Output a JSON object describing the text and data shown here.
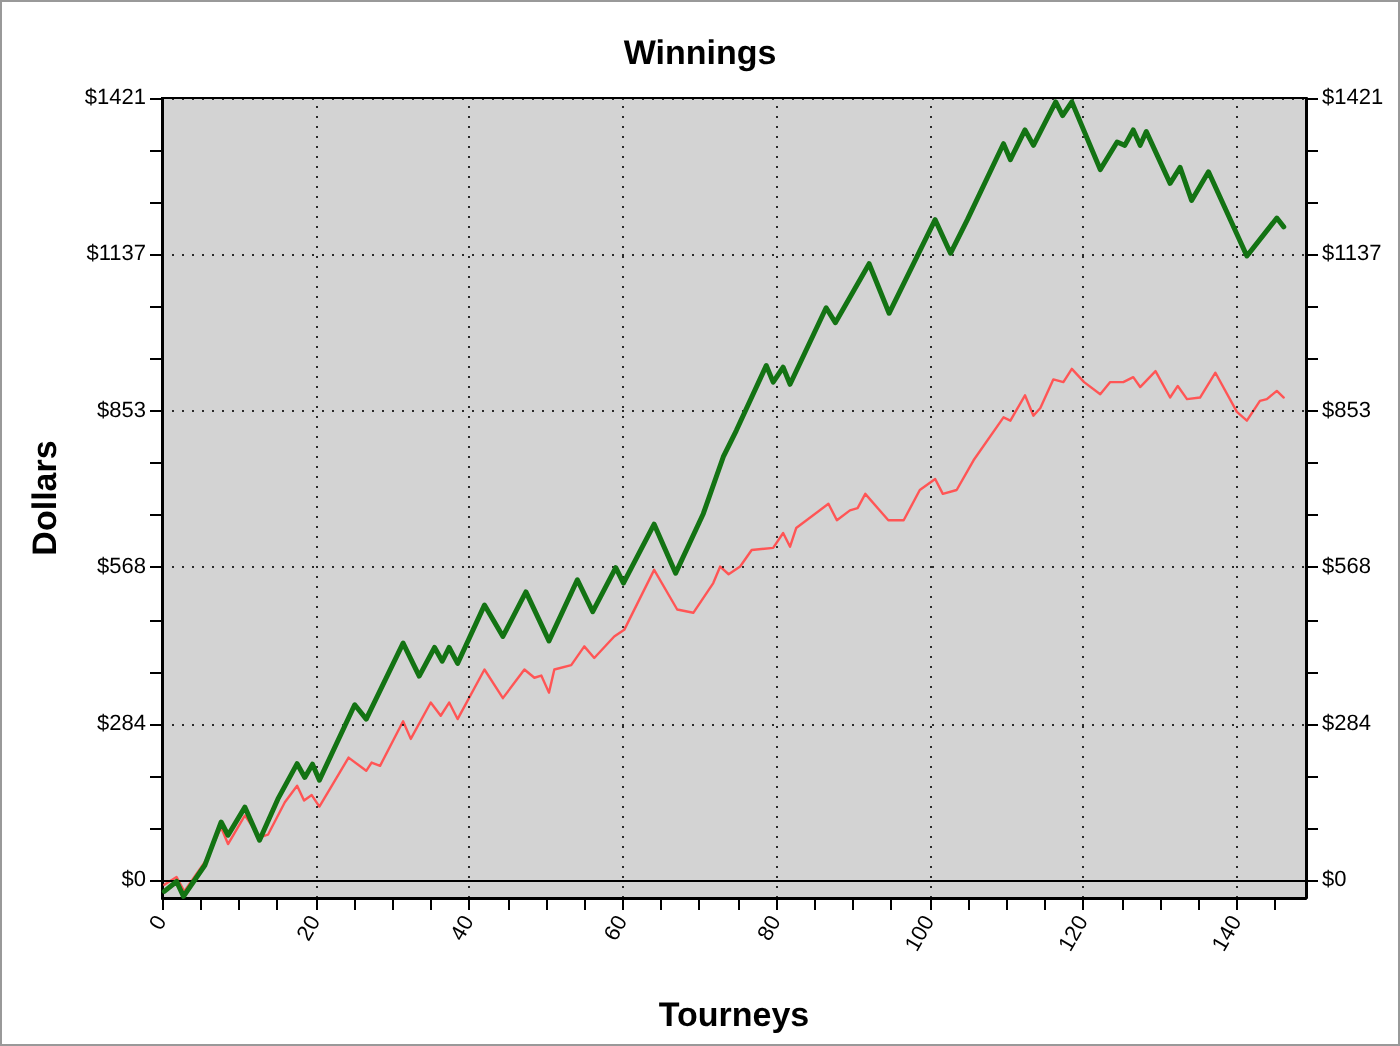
{
  "chart_data": {
    "type": "line",
    "title": "Winnings",
    "xlabel": "Tourneys",
    "ylabel": "Dollars",
    "xlim": [
      0,
      149
    ],
    "xticks": [
      0,
      {
        "value": 5,
        "label": null
      },
      {
        "value": 10,
        "label": null
      },
      {
        "value": 15,
        "label": null
      },
      20,
      {
        "value": 25,
        "label": null
      },
      {
        "value": 30,
        "label": null
      },
      {
        "value": 35,
        "label": null
      },
      40,
      {
        "value": 45,
        "label": null
      },
      {
        "value": 50,
        "label": null
      },
      {
        "value": 55,
        "label": null
      },
      60,
      {
        "value": 65,
        "label": null
      },
      {
        "value": 70,
        "label": null
      },
      {
        "value": 75,
        "label": null
      },
      80,
      {
        "value": 85,
        "label": null
      },
      {
        "value": 90,
        "label": null
      },
      {
        "value": 95,
        "label": null
      },
      100,
      {
        "value": 105,
        "label": null
      },
      {
        "value": 110,
        "label": null
      },
      {
        "value": 115,
        "label": null
      },
      120,
      {
        "value": 125,
        "label": null
      },
      {
        "value": 130,
        "label": null
      },
      {
        "value": 135,
        "label": null
      },
      140,
      {
        "value": 145,
        "label": null
      }
    ],
    "ylim": [
      -32,
      1421
    ],
    "yticks": [
      {
        "value": 0,
        "label": "$0"
      },
      {
        "value": 94.7,
        "label": null
      },
      {
        "value": 189.5,
        "label": null
      },
      {
        "value": 284.2,
        "label": "$284"
      },
      {
        "value": 379,
        "label": null
      },
      {
        "value": 473.7,
        "label": null
      },
      {
        "value": 568.4,
        "label": "$568"
      },
      {
        "value": 663.2,
        "label": null
      },
      {
        "value": 757.9,
        "label": null
      },
      {
        "value": 852.6,
        "label": "$853"
      },
      {
        "value": 947.3,
        "label": null
      },
      {
        "value": 1042.1,
        "label": null
      },
      {
        "value": 1136.8,
        "label": "$1137"
      },
      {
        "value": 1231.5,
        "label": null
      },
      {
        "value": 1326.3,
        "label": null
      },
      {
        "value": 1421,
        "label": "$1421"
      }
    ],
    "y2lim": [
      -32,
      1421
    ],
    "y2ticks": [
      {
        "value": 0,
        "label": "$0"
      },
      {
        "value": 94.7,
        "label": null
      },
      {
        "value": 189.5,
        "label": null
      },
      {
        "value": 284.2,
        "label": "$284"
      },
      {
        "value": 379,
        "label": null
      },
      {
        "value": 473.7,
        "label": null
      },
      {
        "value": 568.4,
        "label": "$568"
      },
      {
        "value": 663.2,
        "label": null
      },
      {
        "value": 757.9,
        "label": null
      },
      {
        "value": 852.6,
        "label": "$853"
      },
      {
        "value": 947.3,
        "label": null
      },
      {
        "value": 1042.1,
        "label": null
      },
      {
        "value": 1136.8,
        "label": "$1137"
      },
      {
        "value": 1231.5,
        "label": null
      },
      {
        "value": 1326.3,
        "label": null
      },
      {
        "value": 1421,
        "label": "$1421"
      }
    ],
    "grid": true,
    "marker": "none",
    "line_style": "solid",
    "ref_lines": [
      {
        "axis": "y",
        "value": 0,
        "color": "#000000",
        "line_style": "solid"
      }
    ],
    "series": [
      {
        "color": "#137313",
        "x": [
          0.3,
          1.9,
          2.8,
          5.6,
          7.7,
          8.6,
          10.8,
          12.7,
          15.1,
          17.6,
          18.6,
          19.6,
          20.5,
          25.1,
          26.6,
          31.4,
          33.5,
          35.5,
          36.5,
          37.4,
          38.5,
          42,
          44.4,
          47.4,
          50.4,
          54.1,
          56.1,
          59.1,
          60.1,
          64.1,
          66.9,
          70.5,
          73.1,
          74.8,
          78.7,
          79.6,
          80.9,
          81.8,
          86.5,
          87.7,
          92.1,
          94.7,
          100.7,
          102.7,
          104.9,
          109.6,
          110.5,
          112.4,
          113.5,
          116.4,
          117.3,
          118.5,
          122.2,
          124.4,
          125.4,
          126.5,
          127.4,
          128.2,
          131.3,
          132.6,
          134.1,
          136.3,
          141.3,
          145.2,
          146.1
        ],
        "values": [
          -20,
          -2,
          -29,
          28,
          106,
          82,
          133,
          73,
          148,
          212,
          187,
          211,
          182,
          319,
          293,
          431,
          371,
          423,
          398,
          423,
          394,
          500,
          443,
          524,
          435,
          546,
          488,
          568,
          540,
          647,
          558,
          666,
          769,
          817,
          935,
          905,
          932,
          901,
          1040,
          1013,
          1120,
          1030,
          1200,
          1139,
          1200,
          1338,
          1309,
          1363,
          1335,
          1414,
          1389,
          1414,
          1291,
          1341,
          1335,
          1363,
          1335,
          1360,
          1266,
          1295,
          1235,
          1287,
          1134,
          1203,
          1187
        ]
      },
      {
        "color": "#ff5555",
        "x": [
          0.3,
          1.9,
          2.9,
          5.6,
          7.7,
          8.6,
          10.8,
          12.7,
          13.8,
          16,
          17.6,
          18.5,
          19.5,
          20.5,
          24.3,
          26.6,
          27.3,
          28.4,
          31.4,
          32.4,
          35,
          36.3,
          37.4,
          38.5,
          42,
          44.4,
          47.2,
          48.5,
          49.4,
          50.4,
          51.1,
          53.3,
          55,
          56.3,
          58.9,
          60.2,
          64.1,
          67.1,
          69.2,
          71.8,
          72.7,
          73.8,
          75.3,
          76.8,
          79.6,
          80.9,
          81.8,
          82.6,
          86.8,
          87.9,
          89.6,
          90.6,
          91.6,
          94.6,
          96.6,
          98.7,
          100.7,
          101.7,
          103.5,
          105.7,
          109.6,
          110.5,
          112.4,
          113.5,
          114.4,
          116.1,
          117.4,
          118.5,
          120.1,
          122.2,
          123.5,
          125.2,
          126.5,
          127.4,
          129.4,
          131.3,
          132.3,
          133.5,
          135.2,
          137.2,
          140,
          141.3,
          143,
          143.9,
          145.2,
          146.1
        ],
        "values": [
          -8,
          6,
          -20,
          34,
          96,
          66,
          118,
          78,
          83,
          142,
          172,
          145,
          155,
          134,
          223,
          199,
          214,
          208,
          289,
          257,
          323,
          299,
          323,
          293,
          383,
          331,
          383,
          368,
          372,
          341,
          383,
          391,
          425,
          404,
          443,
          455,
          564,
          492,
          486,
          540,
          570,
          556,
          570,
          600,
          604,
          631,
          606,
          640,
          684,
          654,
          672,
          676,
          702,
          654,
          654,
          709,
          729,
          702,
          709,
          763,
          841,
          835,
          881,
          844,
          858,
          910,
          905,
          929,
          905,
          883,
          905,
          905,
          914,
          896,
          925,
          877,
          898,
          874,
          877,
          922,
          851,
          835,
          871,
          874,
          889,
          877
        ]
      }
    ]
  }
}
